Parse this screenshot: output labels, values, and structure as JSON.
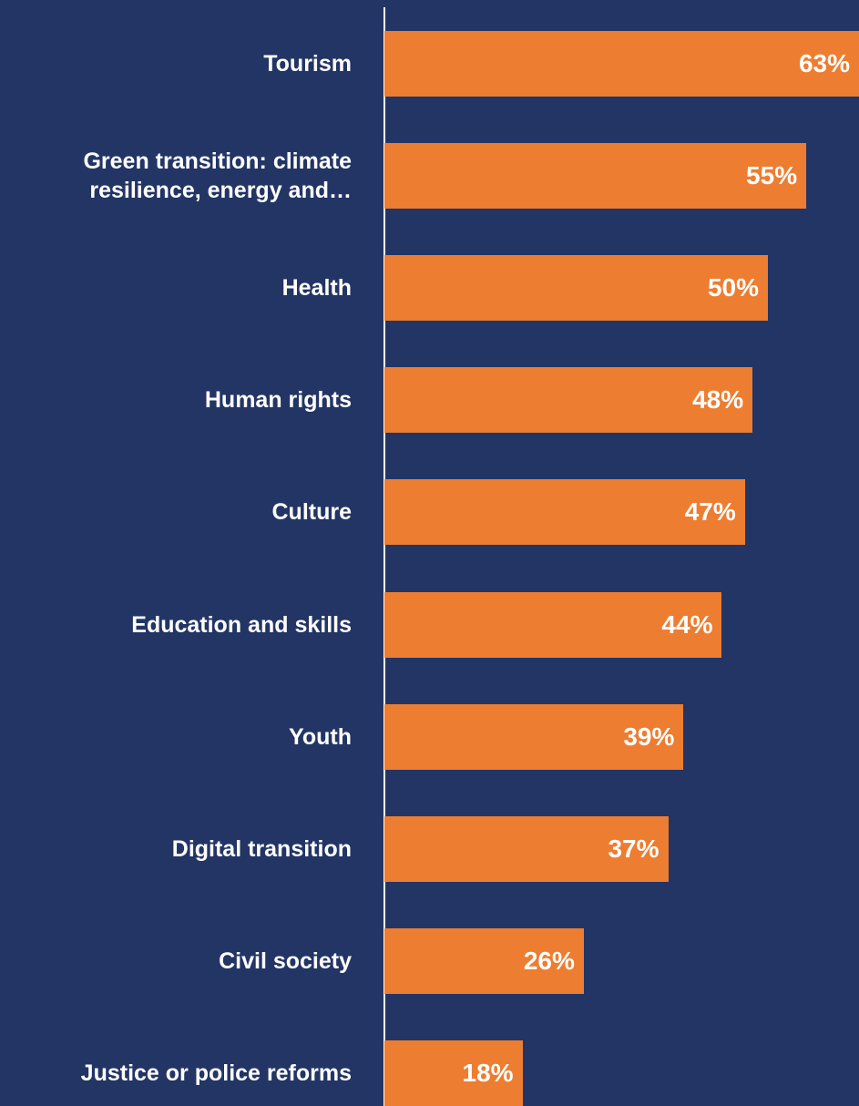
{
  "chart_data": {
    "type": "bar",
    "orientation": "horizontal",
    "categories": [
      "Tourism",
      "Green transition: climate resilience, energy and…",
      "Health",
      "Human rights",
      "Culture",
      "Education and skills",
      "Youth",
      "Digital transition",
      "Civil society",
      "Justice or police reforms"
    ],
    "values": [
      63,
      55,
      50,
      48,
      47,
      44,
      39,
      37,
      26,
      18
    ],
    "value_labels": [
      "63%",
      "55%",
      "50%",
      "48%",
      "47%",
      "44%",
      "39%",
      "37%",
      "26%",
      "18%"
    ],
    "color": "#ED7D31"
  }
}
